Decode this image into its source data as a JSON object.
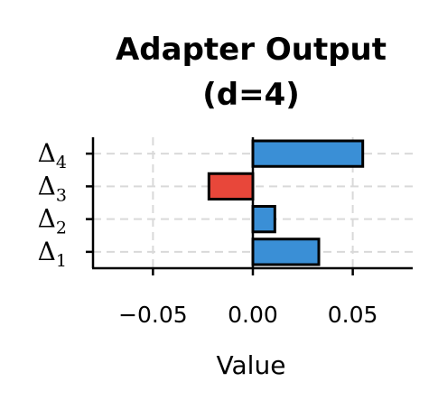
{
  "chart_data": {
    "type": "bar",
    "orientation": "horizontal",
    "title_lines": [
      "Adapter Output",
      "(d=4)"
    ],
    "xlabel": "Value",
    "ylabel": "",
    "xlim": [
      -0.08,
      0.08
    ],
    "xticks": [
      -0.05,
      0.0,
      0.05
    ],
    "xtick_labels": [
      "−0.05",
      "0.00",
      "0.05"
    ],
    "grid": true,
    "categories": [
      {
        "symbol": "Δ",
        "sub": "1"
      },
      {
        "symbol": "Δ",
        "sub": "2"
      },
      {
        "symbol": "Δ",
        "sub": "3"
      },
      {
        "symbol": "Δ",
        "sub": "4"
      }
    ],
    "values": [
      0.033,
      0.011,
      -0.022,
      0.055
    ],
    "colors": {
      "positive": "#3a8fd6",
      "negative": "#e8473a",
      "edge": "#000000",
      "grid": "#d9d9d9"
    }
  }
}
